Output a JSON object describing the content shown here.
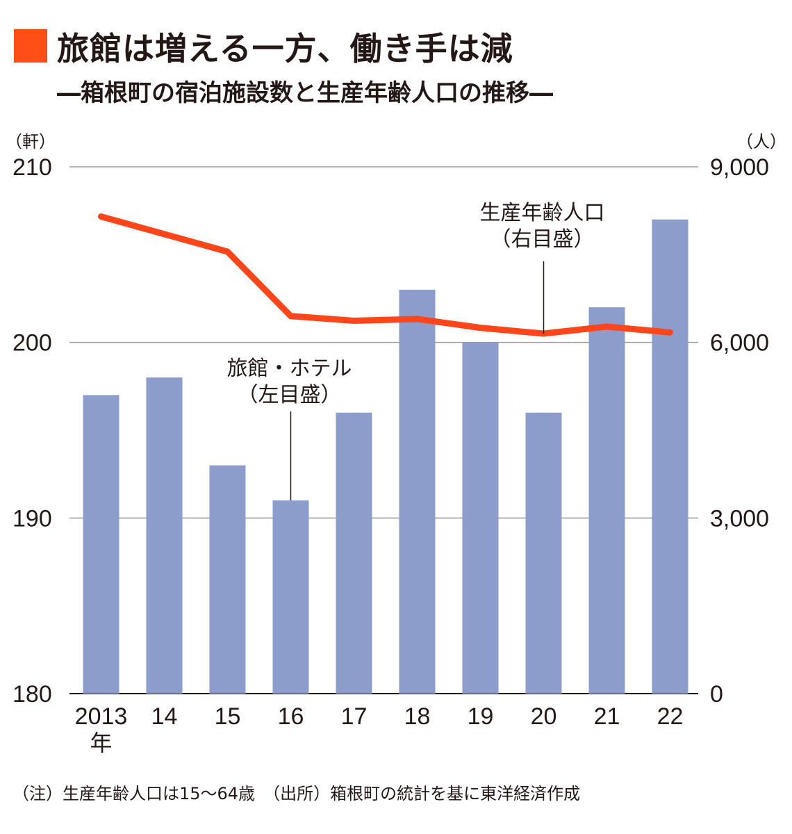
{
  "header": {
    "title": "旅館は増える一方、働き手は減",
    "subtitle": "―箱根町の宿泊施設数と生産年齢人口の推移―",
    "accent_color": "#ff4f17"
  },
  "footer": {
    "note": "（注）生産年齢人口は15〜64歳　（出所）箱根町の統計を基に東洋経済作成"
  },
  "chart_data": {
    "type": "bar",
    "categories": [
      "2013",
      "14",
      "15",
      "16",
      "17",
      "18",
      "19",
      "20",
      "21",
      "22"
    ],
    "category_suffix": "年",
    "left_axis": {
      "unit": "（軒）",
      "ylim": [
        180,
        210
      ],
      "ticks": [
        "180",
        "190",
        "200",
        "210"
      ]
    },
    "right_axis": {
      "unit": "（人）",
      "ylim": [
        0,
        9000
      ],
      "ticks": [
        "0",
        "3,000",
        "6,000",
        "9,000"
      ]
    },
    "series": [
      {
        "name": "旅館・ホテル",
        "axis": "left",
        "type": "bar",
        "color": "#8c9ccb",
        "values": [
          197,
          198,
          193,
          191,
          196,
          203,
          200,
          196,
          202,
          207
        ]
      },
      {
        "name": "生産年齢人口",
        "axis": "right",
        "type": "line",
        "color": "#ff4519",
        "values": [
          8150,
          7850,
          7550,
          6450,
          6370,
          6400,
          6250,
          6150,
          6270,
          6170
        ]
      }
    ],
    "annotations": [
      {
        "series": "旅館・ホテル",
        "lines": [
          "旅館・ホテル",
          "（左目盛）"
        ]
      },
      {
        "series": "生産年齢人口",
        "lines": [
          "生産年齢人口",
          "（右目盛）"
        ]
      }
    ],
    "grid": true,
    "legend": "none"
  }
}
